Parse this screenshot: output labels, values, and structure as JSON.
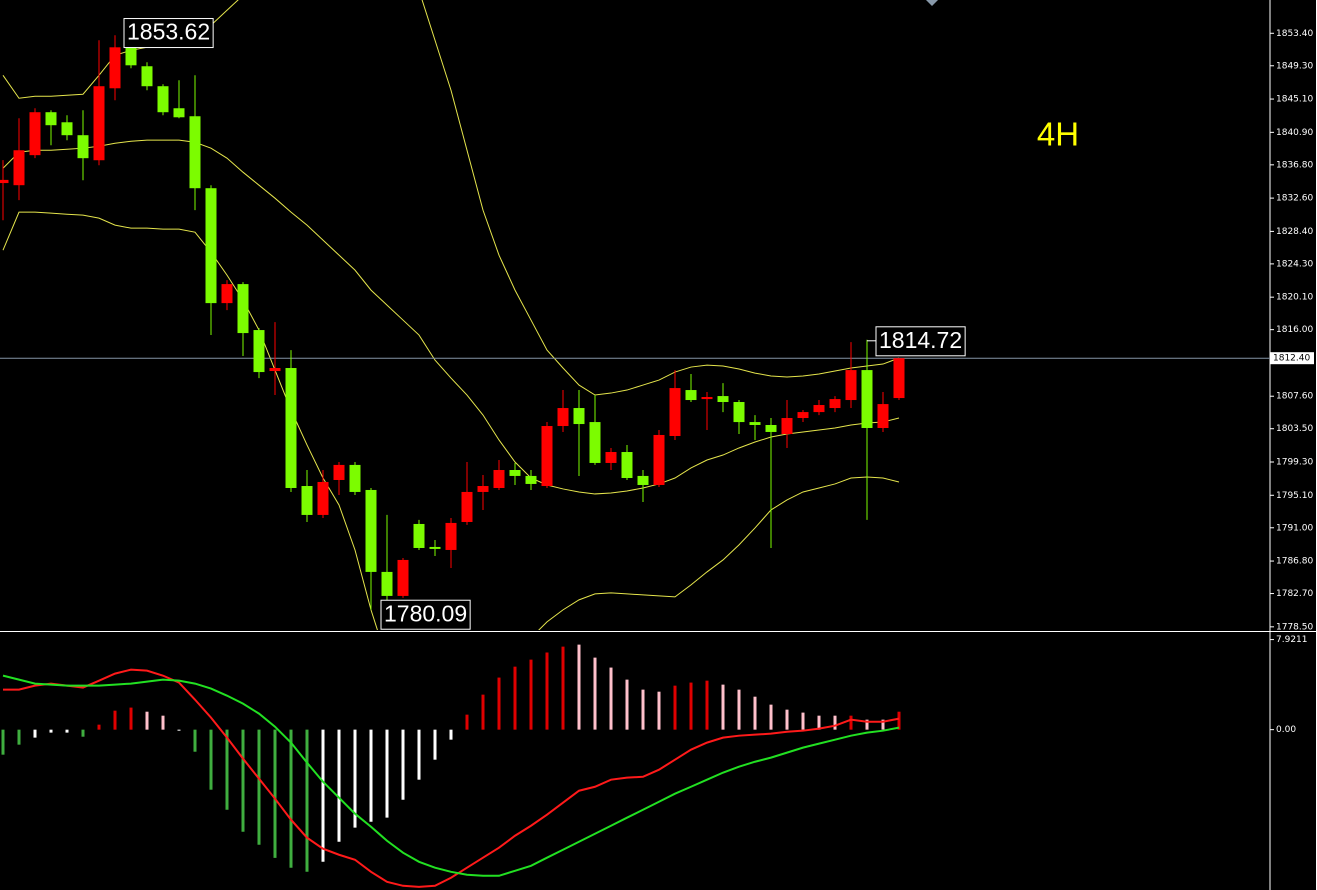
{
  "chart_data": [
    {
      "type": "candlestick",
      "timeframe": "4H",
      "ylim": [
        1778.1,
        1857.6
      ],
      "yticks": [
        {
          "value": 1853.4,
          "label": "1853.40"
        },
        {
          "value": 1849.3,
          "label": "1849.30"
        },
        {
          "value": 1845.1,
          "label": "1845.10"
        },
        {
          "value": 1840.9,
          "label": "1840.90"
        },
        {
          "value": 1836.8,
          "label": "1836.80"
        },
        {
          "value": 1832.6,
          "label": "1832.60"
        },
        {
          "value": 1828.4,
          "label": "1828.40"
        },
        {
          "value": 1824.3,
          "label": "1824.30"
        },
        {
          "value": 1820.1,
          "label": "1820.10"
        },
        {
          "value": 1816,
          "label": "1816.00"
        },
        {
          "value": 1807.6,
          "label": "1807.60"
        },
        {
          "value": 1803.5,
          "label": "1803.50"
        },
        {
          "value": 1799.3,
          "label": "1799.30"
        },
        {
          "value": 1795.1,
          "label": "1795.10"
        },
        {
          "value": 1791,
          "label": "1791.00"
        },
        {
          "value": 1786.8,
          "label": "1786.80"
        },
        {
          "value": 1782.7,
          "label": "1782.70"
        },
        {
          "value": 1778.5,
          "label": "1778.50"
        }
      ],
      "current_price": {
        "value": 1812.4,
        "label": "1812.40"
      },
      "up_color": "#ff0000",
      "down_color": "#7cfc00",
      "open": [
        1834.5,
        1834.23,
        1838.02,
        1843.44,
        1842.17,
        1840.54,
        1837.38,
        1846.46,
        1851.63,
        1849.24,
        1846.72,
        1843.94,
        1842.93,
        1833.85,
        1819.35,
        1821.75,
        1815.95,
        1810.78,
        1811.16,
        1796.27,
        1792.62,
        1797.03,
        1798.93,
        1795.77,
        1785.43,
        1782.4,
        1791.48,
        1788.58,
        1788.2,
        1791.73,
        1795.52,
        1796.02,
        1798.29,
        1797.54,
        1796.27,
        1803.84,
        1806.11,
        1804.34,
        1799.18,
        1800.56,
        1797.54,
        1796.4,
        1802.58,
        1808.38,
        1807.24,
        1807.62,
        1806.87,
        1804.34,
        1803.97,
        1802.83,
        1804.85,
        1805.6,
        1806.11,
        1807.12,
        1810.9,
        1803.59,
        1807.37
      ],
      "high": [
        1837.4,
        1842.68,
        1843.94,
        1843.69,
        1843.06,
        1843.69,
        1852.52,
        1853.15,
        1853.62,
        1849.74,
        1846.97,
        1847.47,
        1848.1,
        1834.23,
        1822.25,
        1822.0,
        1816.2,
        1816.95,
        1813.42,
        1798.29,
        1798.29,
        1799.3,
        1799.3,
        1796.02,
        1792.62,
        1787.19,
        1791.99,
        1789.46,
        1792.24,
        1799.3,
        1797.66,
        1799.56,
        1799.18,
        1798.29,
        1804.34,
        1808.38,
        1808.38,
        1807.75,
        1801.07,
        1801.44,
        1798.29,
        1803.34,
        1810.9,
        1810.4,
        1808.13,
        1809.26,
        1807.12,
        1805.22,
        1804.85,
        1807.12,
        1805.86,
        1807.12,
        1807.62,
        1814.43,
        1814.72,
        1808.13,
        1812.4
      ],
      "low": [
        1829.8,
        1832.34,
        1837.64,
        1839.27,
        1839.9,
        1834.86,
        1836.75,
        1844.95,
        1848.99,
        1846.21,
        1843.06,
        1842.68,
        1831.08,
        1815.32,
        1818.47,
        1812.67,
        1809.89,
        1807.75,
        1795.52,
        1791.73,
        1792.24,
        1795.14,
        1795.14,
        1780.64,
        1780.09,
        1782.15,
        1788.2,
        1787.44,
        1785.93,
        1791.36,
        1793.25,
        1795.77,
        1796.4,
        1795.77,
        1796.02,
        1803.09,
        1797.54,
        1798.93,
        1798.29,
        1797.03,
        1794.26,
        1796.15,
        1802.08,
        1806.87,
        1803.34,
        1805.6,
        1802.83,
        1802.08,
        1788.45,
        1801.07,
        1804.34,
        1805.22,
        1805.6,
        1806.11,
        1792.0,
        1803.09,
        1807.12
      ],
      "close": [
        1834.9,
        1838.64,
        1843.44,
        1841.8,
        1840.54,
        1837.64,
        1846.72,
        1851.63,
        1849.36,
        1846.72,
        1843.44,
        1842.8,
        1833.85,
        1819.35,
        1821.75,
        1815.57,
        1810.65,
        1811.16,
        1796.02,
        1792.62,
        1796.78,
        1798.93,
        1795.52,
        1785.43,
        1782.4,
        1786.94,
        1788.45,
        1788.33,
        1791.61,
        1795.52,
        1796.27,
        1798.29,
        1797.54,
        1796.53,
        1803.84,
        1806.11,
        1804.09,
        1799.18,
        1800.56,
        1797.28,
        1796.4,
        1802.71,
        1808.63,
        1807.12,
        1807.5,
        1806.87,
        1804.34,
        1803.97,
        1803.09,
        1804.85,
        1805.6,
        1806.49,
        1807.24,
        1810.9,
        1803.59,
        1806.61,
        1812.4
      ],
      "bands": [
        {
          "color": "#e5e54c",
          "values": [
            1848.1,
            1845.2,
            1845.45,
            1845.45,
            1845.58,
            1845.71,
            1848.1,
            1850.62,
            1851.25,
            1851.63,
            1851.63,
            1851.89,
            1853.15,
            1854.41,
            1856.3,
            1858.19,
            1860.08,
            1861.97,
            1863.23,
            1863.87,
            1863.87,
            1863.23,
            1862.6,
            1861.34,
            1860.08,
            1859.45,
            1858.82,
            1852.52,
            1846.21,
            1838.64,
            1831.08,
            1825.4,
            1820.99,
            1817.21,
            1813.42,
            1811.16,
            1809.01,
            1807.75,
            1808.0,
            1808.38,
            1809.01,
            1809.64,
            1810.65,
            1811.28,
            1811.53,
            1811.41,
            1811.03,
            1810.52,
            1810.15,
            1810.02,
            1810.15,
            1810.4,
            1810.78,
            1811.16,
            1811.41,
            1811.66,
            1812.42
          ]
        },
        {
          "color": "#e5e54c",
          "values": [
            1836.37,
            1838.39,
            1838.64,
            1838.64,
            1838.77,
            1838.9,
            1839.15,
            1839.53,
            1839.78,
            1839.91,
            1839.91,
            1839.91,
            1839.65,
            1838.9,
            1837.64,
            1835.87,
            1834.23,
            1832.59,
            1830.83,
            1829.19,
            1827.3,
            1825.4,
            1823.51,
            1820.99,
            1819.1,
            1817.21,
            1815.32,
            1812.16,
            1809.89,
            1807.75,
            1805.23,
            1802.08,
            1799.3,
            1797.28,
            1796.4,
            1795.9,
            1795.52,
            1795.27,
            1795.39,
            1795.64,
            1796.02,
            1796.53,
            1797.28,
            1798.55,
            1799.55,
            1800.18,
            1801.07,
            1801.82,
            1802.45,
            1802.83,
            1803.08,
            1803.34,
            1803.59,
            1803.97,
            1804.22,
            1804.35,
            1804.85
          ]
        },
        {
          "color": "#e5e54c",
          "values": [
            1826.03,
            1830.83,
            1830.83,
            1830.7,
            1830.57,
            1830.45,
            1830.07,
            1829.19,
            1828.81,
            1828.81,
            1828.68,
            1828.68,
            1828.3,
            1825.78,
            1822.88,
            1819.73,
            1815.95,
            1810.9,
            1805.86,
            1801.45,
            1797.28,
            1793.88,
            1788.2,
            1780.64,
            1774.33,
            1770.55,
            1769.29,
            1769.29,
            1770.55,
            1771.81,
            1773.07,
            1774.33,
            1775.59,
            1777.11,
            1779.13,
            1780.64,
            1781.9,
            1782.66,
            1782.78,
            1782.66,
            1782.53,
            1782.4,
            1782.28,
            1783.79,
            1785.43,
            1786.94,
            1788.84,
            1790.98,
            1793.25,
            1794.51,
            1795.52,
            1796.02,
            1796.53,
            1797.28,
            1797.41,
            1797.28,
            1796.78
          ]
        }
      ]
    },
    {
      "type": "macd",
      "ylim": [
        -14.1,
        8.5
      ],
      "yticks": [
        7.9211,
        {
          "value": 0,
          "label": "0.00"
        }
      ],
      "histogram": {
        "values": [
          -2.2,
          -1.32,
          -0.7,
          -0.26,
          -0.26,
          -0.62,
          0.44,
          1.67,
          1.94,
          1.58,
          1.23,
          -0.09,
          -1.94,
          -5.28,
          -7.04,
          -8.98,
          -10.12,
          -11.27,
          -12.14,
          -12.5,
          -11.62,
          -9.86,
          -8.62,
          -8.1,
          -7.74,
          -6.16,
          -4.4,
          -2.64,
          -0.88,
          1.32,
          3.08,
          4.58,
          5.54,
          6.16,
          6.78,
          7.3,
          7.48,
          6.34,
          5.46,
          4.4,
          3.52,
          3.34,
          3.87,
          4.14,
          4.31,
          3.96,
          3.52,
          2.9,
          2.2,
          1.76,
          1.5,
          1.23,
          1.23,
          1.23,
          0.88,
          0.88,
          1.58
        ],
        "colors": [
          "#3fae3f",
          "#3fae3f",
          "#ffffff",
          "#ffffff",
          "#ffffff",
          "#3fae3f",
          "#e00000",
          "#e00000",
          "#e00000",
          "#ffc0cb",
          "#ffc0cb",
          "#ffffff",
          "#3fae3f",
          "#3fae3f",
          "#3fae3f",
          "#3fae3f",
          "#3fae3f",
          "#3fae3f",
          "#3fae3f",
          "#3fae3f",
          "#ffffff",
          "#ffffff",
          "#ffffff",
          "#ffffff",
          "#ffffff",
          "#ffffff",
          "#ffffff",
          "#ffffff",
          "#ffffff",
          "#e00000",
          "#e00000",
          "#e00000",
          "#e00000",
          "#e00000",
          "#e00000",
          "#e00000",
          "#ffc0cb",
          "#ffc0cb",
          "#ffc0cb",
          "#ffc0cb",
          "#ffc0cb",
          "#ffc0cb",
          "#e00000",
          "#e00000",
          "#e00000",
          "#ffc0cb",
          "#ffc0cb",
          "#ffc0cb",
          "#ffc0cb",
          "#ffc0cb",
          "#ffc0cb",
          "#ffc0cb",
          "#ffc0cb",
          "#e00000",
          "#ffc0cb",
          "#ffc0cb",
          "#e00000"
        ]
      },
      "series": [
        {
          "color": "#ff1a1a",
          "values": [
            3.52,
            3.52,
            3.87,
            4.05,
            3.87,
            3.7,
            4.31,
            4.93,
            5.28,
            5.19,
            4.75,
            4.14,
            2.64,
            1.06,
            -0.7,
            -2.55,
            -4.31,
            -6.07,
            -7.92,
            -9.5,
            -10.47,
            -11.0,
            -11.44,
            -12.5,
            -13.38,
            -13.73,
            -13.82,
            -13.73,
            -13.02,
            -12.14,
            -11.26,
            -10.38,
            -9.33,
            -8.45,
            -7.48,
            -6.42,
            -5.37,
            -5.02,
            -4.4,
            -4.22,
            -4.14,
            -3.52,
            -2.64,
            -1.76,
            -1.14,
            -0.7,
            -0.53,
            -0.44,
            -0.35,
            -0.18,
            -0.09,
            0.09,
            0.35,
            0.88,
            0.7,
            0.7,
            0.97
          ]
        },
        {
          "color": "#22e022",
          "values": [
            4.75,
            4.4,
            4.05,
            3.96,
            3.87,
            3.87,
            3.87,
            3.96,
            4.05,
            4.22,
            4.4,
            4.31,
            4.05,
            3.61,
            2.99,
            2.29,
            1.41,
            0.26,
            -1.14,
            -2.9,
            -4.58,
            -5.98,
            -7.39,
            -8.54,
            -9.77,
            -10.82,
            -11.62,
            -12.14,
            -12.5,
            -12.76,
            -12.85,
            -12.85,
            -12.41,
            -11.97,
            -11.26,
            -10.56,
            -9.86,
            -9.15,
            -8.45,
            -7.74,
            -7.04,
            -6.34,
            -5.63,
            -5.02,
            -4.4,
            -3.78,
            -3.26,
            -2.82,
            -2.46,
            -2.02,
            -1.58,
            -1.23,
            -0.88,
            -0.53,
            -0.26,
            -0.09,
            0.18
          ]
        }
      ]
    }
  ]
}
